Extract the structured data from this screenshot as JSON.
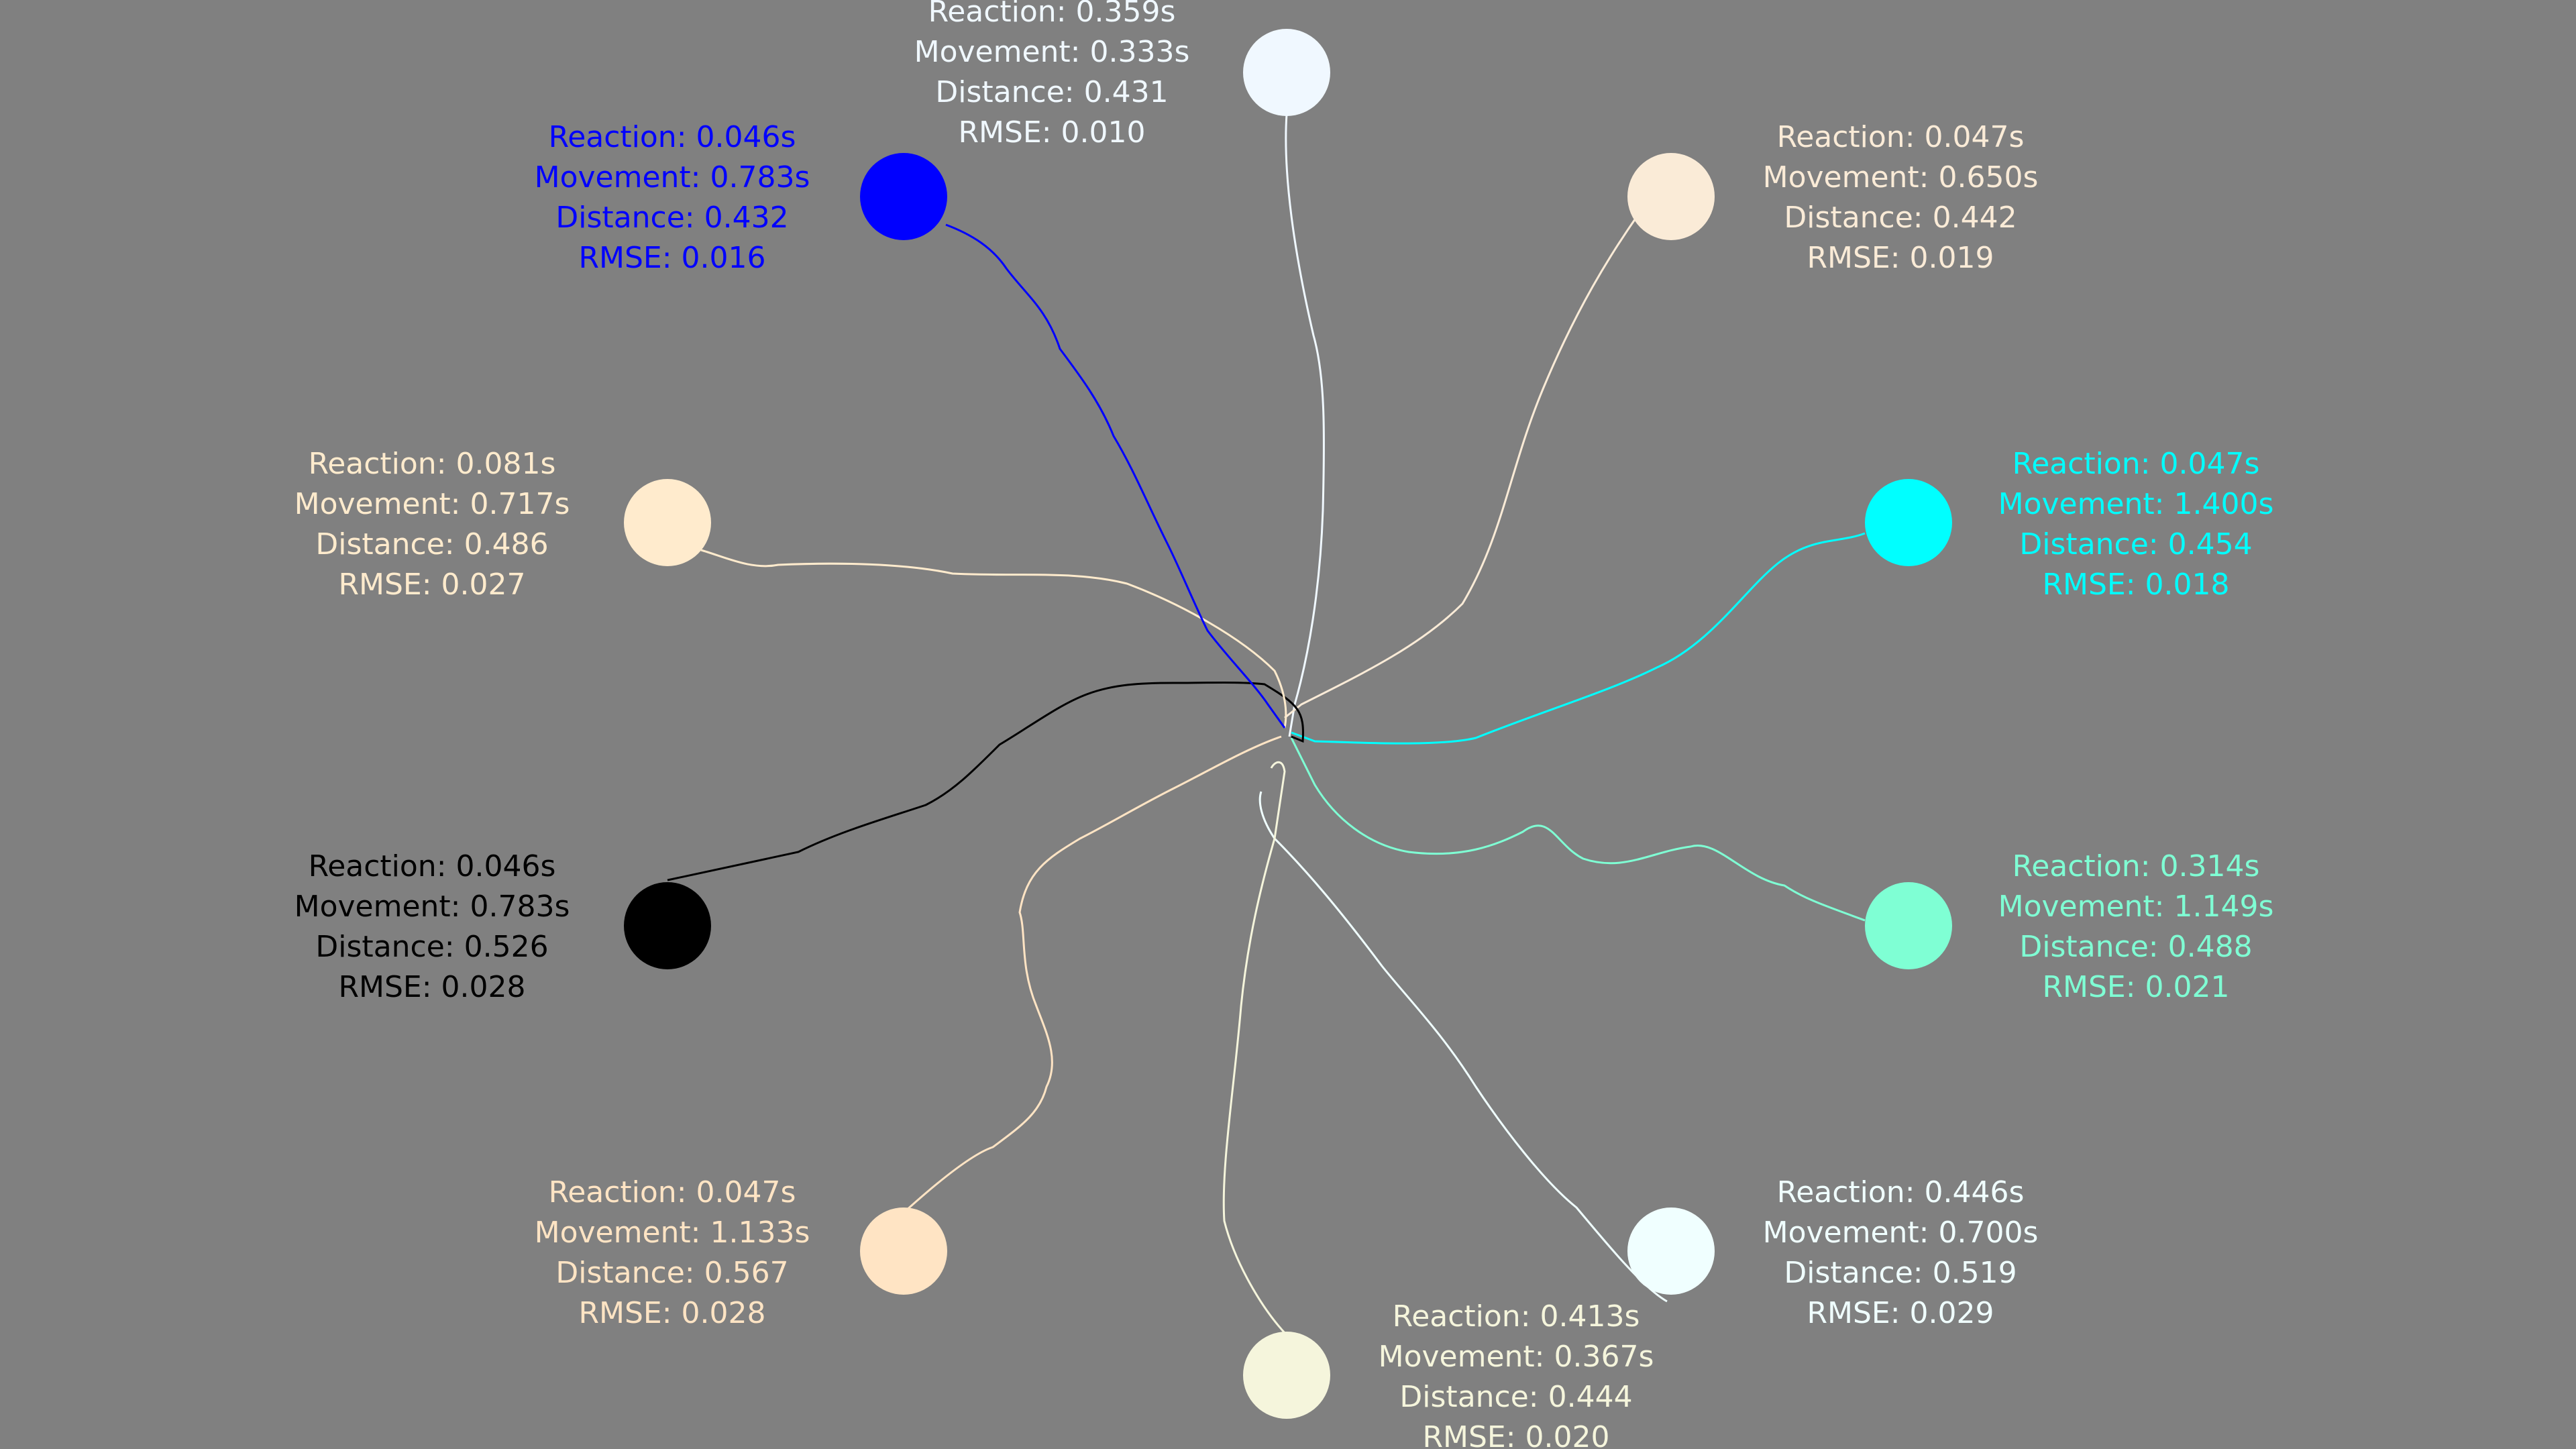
{
  "targets": [
    {
      "id": "north",
      "color": "#F0F8FF",
      "reaction": "Reaction: 0.359s",
      "movement": "Movement: 0.333s",
      "distance": "Distance: 0.431",
      "rmse": "RMSE: 0.010"
    },
    {
      "id": "north-east",
      "color": "#FAEBD7",
      "reaction": "Reaction: 0.047s",
      "movement": "Movement: 0.650s",
      "distance": "Distance: 0.442",
      "rmse": "RMSE: 0.019"
    },
    {
      "id": "east-upper",
      "color": "#00FFFF",
      "reaction": "Reaction: 0.047s",
      "movement": "Movement: 1.400s",
      "distance": "Distance: 0.454",
      "rmse": "RMSE: 0.018"
    },
    {
      "id": "east-lower",
      "color": "#7FFFD4",
      "reaction": "Reaction: 0.314s",
      "movement": "Movement: 1.149s",
      "distance": "Distance: 0.488",
      "rmse": "RMSE: 0.021"
    },
    {
      "id": "south-east",
      "color": "#F0FFFF",
      "reaction": "Reaction: 0.446s",
      "movement": "Movement: 0.700s",
      "distance": "Distance: 0.519",
      "rmse": "RMSE: 0.029"
    },
    {
      "id": "south",
      "color": "#F5F5DC",
      "reaction": "Reaction: 0.413s",
      "movement": "Movement: 0.367s",
      "distance": "Distance: 0.444",
      "rmse": "RMSE: 0.020"
    },
    {
      "id": "south-west",
      "color": "#FFE4C4",
      "reaction": "Reaction: 0.047s",
      "movement": "Movement: 1.133s",
      "distance": "Distance: 0.567",
      "rmse": "RMSE: 0.028"
    },
    {
      "id": "west-lower",
      "color": "#000000",
      "reaction": "Reaction: 0.046s",
      "movement": "Movement: 0.783s",
      "distance": "Distance: 0.526",
      "rmse": "RMSE: 0.028"
    },
    {
      "id": "west-upper",
      "color": "#FFEBCD",
      "reaction": "Reaction: 0.081s",
      "movement": "Movement: 0.717s",
      "distance": "Distance: 0.486",
      "rmse": "RMSE: 0.027"
    },
    {
      "id": "north-west",
      "color": "#0000FF",
      "reaction": "Reaction: 0.046s",
      "movement": "Movement: 0.783s",
      "distance": "Distance: 0.432",
      "rmse": "RMSE: 0.016"
    }
  ]
}
